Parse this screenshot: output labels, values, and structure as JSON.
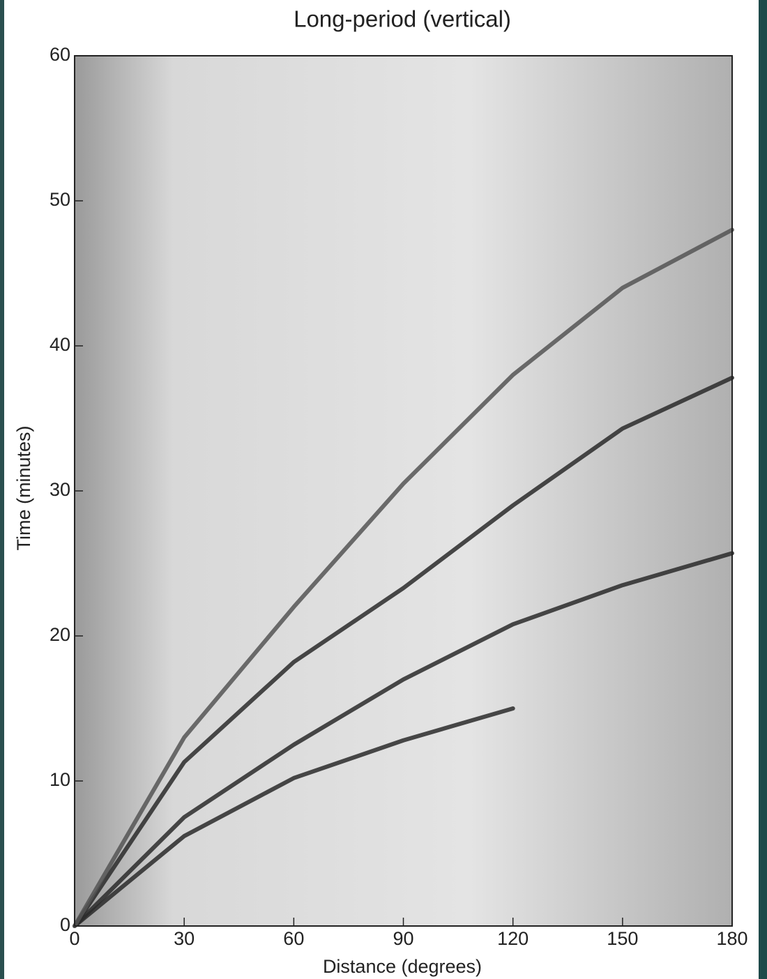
{
  "chart_data": {
    "type": "line",
    "title": "Long-period (vertical)",
    "xlabel": "Distance (degrees)",
    "ylabel": "Time (minutes)",
    "x": [
      0,
      30,
      60,
      90,
      120,
      150,
      180
    ],
    "series": [
      {
        "color": "#2a2a2a",
        "values": [
          0,
          6.2,
          10.2,
          12.8,
          15.0,
          null,
          null
        ]
      },
      {
        "color": "#2a2a2a",
        "values": [
          0,
          7.5,
          12.5,
          17.0,
          20.8,
          23.5,
          25.7
        ]
      },
      {
        "color": "#2a2a2a",
        "values": [
          0,
          11.3,
          18.2,
          23.3,
          29.0,
          34.3,
          37.8
        ]
      },
      {
        "color": "#555555",
        "values": [
          0,
          13.0,
          22.0,
          30.5,
          38.0,
          44.0,
          48.0
        ]
      }
    ],
    "xlim": [
      0,
      180
    ],
    "ylim": [
      0,
      60
    ],
    "xticks": [
      0,
      30,
      60,
      90,
      120,
      150,
      180
    ],
    "yticks": [
      0,
      10,
      20,
      30,
      40,
      50,
      60
    ],
    "grid": false
  }
}
